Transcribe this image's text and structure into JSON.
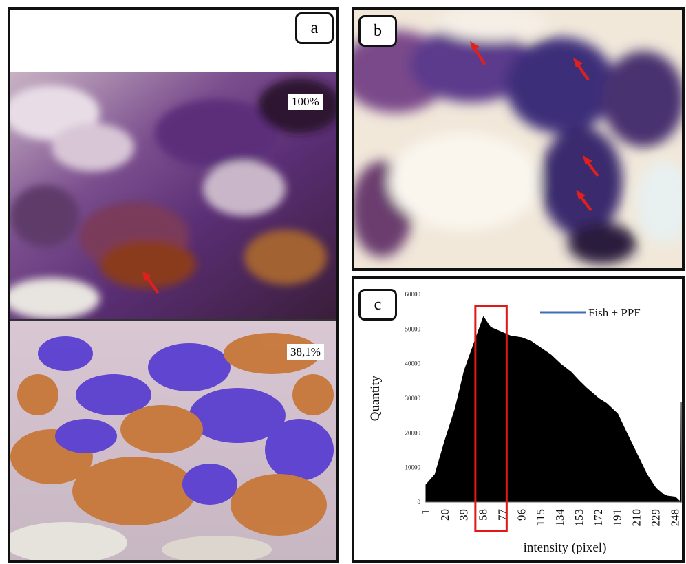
{
  "figure": {
    "panels": [
      {
        "id": "a",
        "label": "a",
        "top_value": "100%",
        "bottom_value": "38,1%"
      },
      {
        "id": "b",
        "label": "b"
      },
      {
        "id": "c",
        "label": "c"
      }
    ],
    "colors": {
      "stain_purple": "#6a3d8c",
      "overlay_blue": "#5a3fd0",
      "overlay_orange": "#c8783a",
      "arrow": "#e0201c",
      "highlight_box": "#e01818",
      "series_line": "#3d6fb5"
    },
    "icons": [
      "red-arrow-icon"
    ]
  },
  "chart_data": {
    "type": "area",
    "xlabel": "intensity (pixel)",
    "ylabel": "Quantity",
    "series": [
      {
        "name": "Fish + PPF",
        "x": [
          1,
          10,
          20,
          30,
          39,
          50,
          58,
          65,
          77,
          85,
          96,
          105,
          115,
          125,
          134,
          145,
          153,
          160,
          172,
          180,
          191,
          200,
          210,
          220,
          229,
          235,
          240,
          248,
          254
        ],
        "values": [
          5000,
          8000,
          18000,
          27000,
          38000,
          47000,
          53500,
          50500,
          49000,
          48000,
          47500,
          46500,
          44500,
          42500,
          40000,
          37500,
          35000,
          33000,
          30000,
          28500,
          25500,
          20000,
          14000,
          8000,
          4000,
          2500,
          1800,
          1500,
          29000
        ]
      }
    ],
    "x_ticks": [
      "1",
      "20",
      "39",
      "58",
      "77",
      "96",
      "115",
      "134",
      "153",
      "172",
      "191",
      "210",
      "229",
      "248"
    ],
    "y_ticks": [
      "0",
      "10000",
      "20000",
      "30000",
      "40000",
      "50000",
      "60000"
    ],
    "xlim": [
      1,
      256
    ],
    "ylim": [
      0,
      60000
    ],
    "highlight_range": [
      50,
      81
    ],
    "legend_position": "top-right",
    "grid": false
  }
}
